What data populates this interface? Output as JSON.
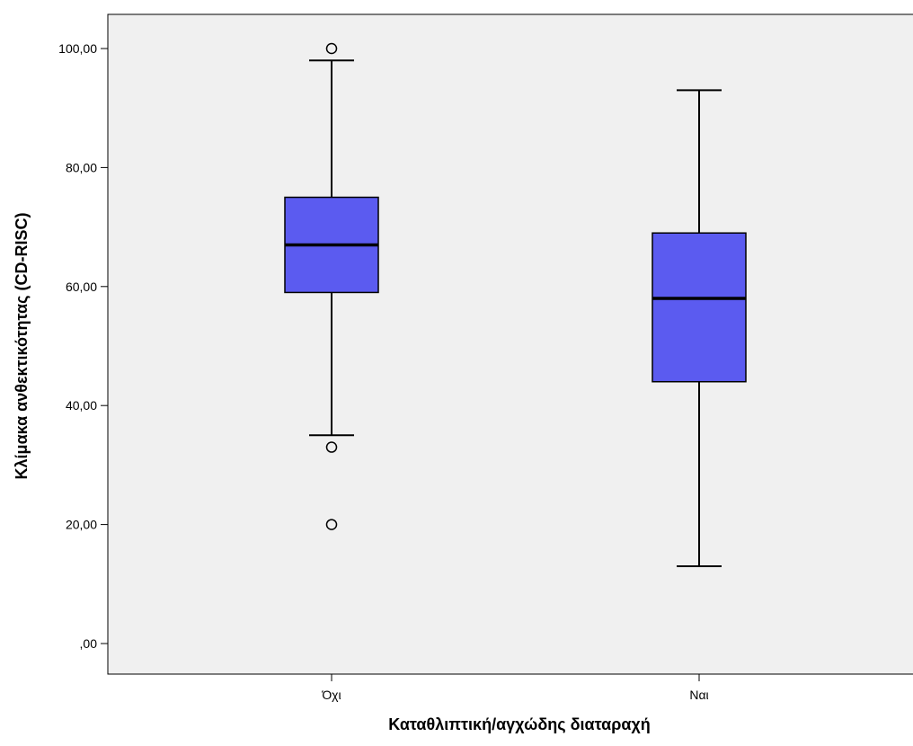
{
  "chart_data": {
    "type": "box",
    "xlabel": "Καταθλιπτική/αγχώδης διαταραχή",
    "ylabel": "Κλίμακα ανθεκτικότητας (CD-RISC)",
    "ylim": [
      0,
      100
    ],
    "y_ticks": [
      0,
      20,
      40,
      60,
      80,
      100
    ],
    "y_tick_labels": [
      ",00",
      "20,00",
      "40,00",
      "60,00",
      "80,00",
      "100,00"
    ],
    "categories": [
      "Όχι",
      "Ναι"
    ],
    "boxes": [
      {
        "category": "Όχι",
        "whisker_low": 35,
        "q1": 59,
        "median": 67,
        "q3": 75,
        "whisker_high": 98,
        "outliers": [
          100,
          33,
          20
        ]
      },
      {
        "category": "Ναι",
        "whisker_low": 13,
        "q1": 44,
        "median": 58,
        "q3": 69,
        "whisker_high": 93,
        "outliers": []
      }
    ],
    "box_color": "#5b5bf0",
    "plot_background": "#f0f0f0",
    "grid": false,
    "legend": "none"
  }
}
